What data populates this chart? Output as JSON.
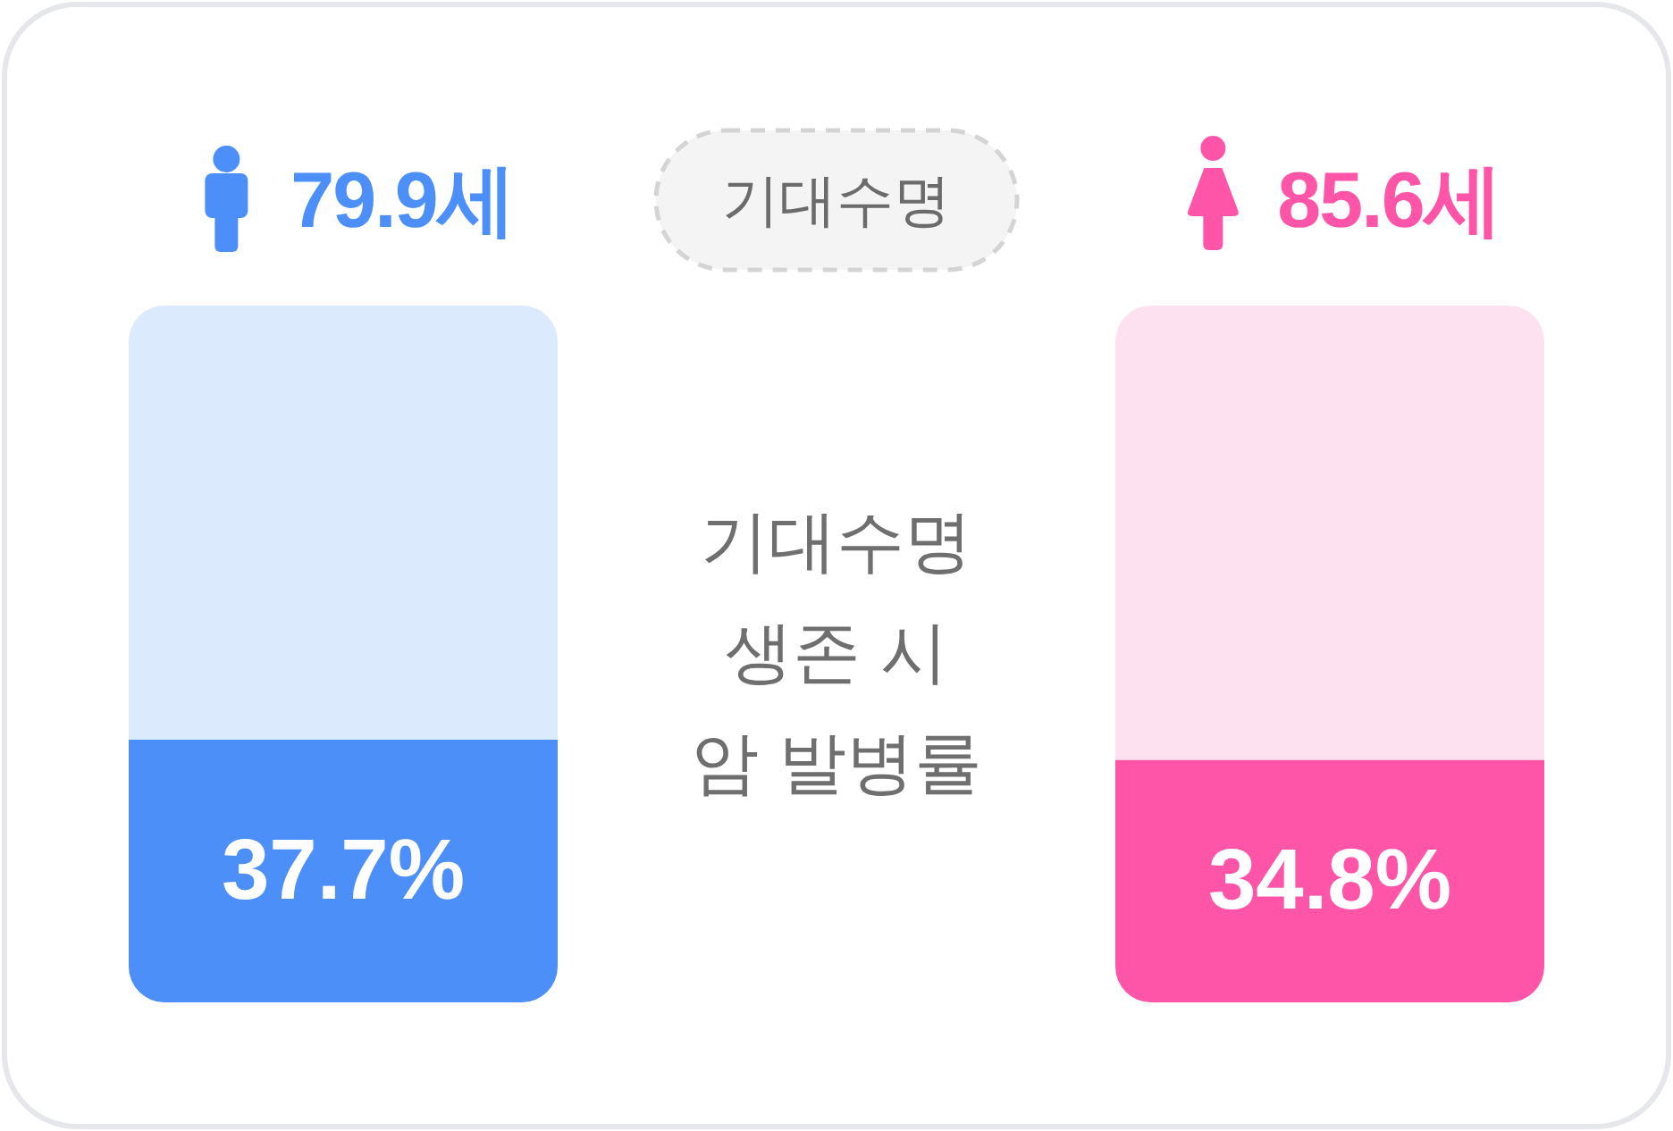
{
  "chart_data": {
    "type": "bar",
    "title": "기대수명\n생존 시\n암 발병률",
    "xlabel": "기대수명",
    "categories": [
      "79.9세",
      "85.6세"
    ],
    "stacked": true,
    "ylim": [
      0,
      100
    ],
    "tick_labels": "x",
    "series": [
      {
        "values": [
          37.7,
          34.8
        ],
        "colors": [
          "#4d8ff9",
          "#fe55a8"
        ],
        "value_labels": [
          "37.7%",
          "34.8%"
        ]
      },
      {
        "values": [
          62.3,
          65.2
        ],
        "colors": [
          "#dceafd",
          "#fde1f0"
        ]
      }
    ]
  }
}
